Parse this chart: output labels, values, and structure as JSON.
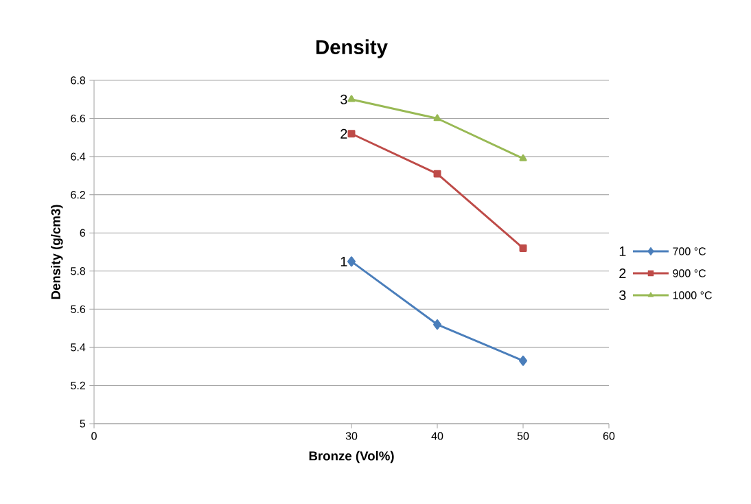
{
  "chart_data": {
    "type": "line",
    "title": "Density",
    "xlabel": "Bronze (Vol%)",
    "ylabel": "Density (g/cm3)",
    "x": [
      30,
      40,
      50
    ],
    "series": [
      {
        "name": "700 °C",
        "color": "#4a7ebb",
        "marker": "diamond",
        "values": [
          5.85,
          5.52,
          5.33
        ]
      },
      {
        "name": "900 °C",
        "color": "#be4b48",
        "marker": "square",
        "values": [
          6.52,
          6.31,
          5.92
        ]
      },
      {
        "name": "1000 °C",
        "color": "#98b954",
        "marker": "triangle",
        "values": [
          6.7,
          6.6,
          6.39
        ]
      }
    ],
    "annotations": [
      "1",
      "2",
      "3",
      "1",
      "2",
      "3"
    ],
    "xlim": [
      0,
      60
    ],
    "xticks": [
      0,
      30,
      40,
      50,
      60
    ],
    "ylim": [
      5,
      6.8
    ],
    "yticks": [
      5,
      5.2,
      5.4,
      5.6,
      5.8,
      6,
      6.2,
      6.4,
      6.6,
      6.8
    ],
    "grid": "y",
    "legend": "right"
  }
}
